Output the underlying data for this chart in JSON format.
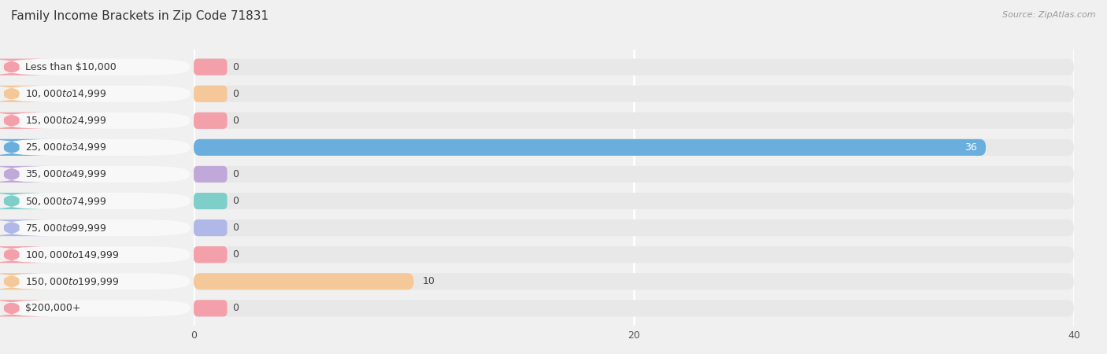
{
  "title": "Family Income Brackets in Zip Code 71831",
  "source": "Source: ZipAtlas.com",
  "categories": [
    "Less than $10,000",
    "$10,000 to $14,999",
    "$15,000 to $24,999",
    "$25,000 to $34,999",
    "$35,000 to $49,999",
    "$50,000 to $74,999",
    "$75,000 to $99,999",
    "$100,000 to $149,999",
    "$150,000 to $199,999",
    "$200,000+"
  ],
  "values": [
    0,
    0,
    0,
    36,
    0,
    0,
    0,
    0,
    10,
    0
  ],
  "bar_colors": [
    "#f4a0aa",
    "#f5c89a",
    "#f4a0aa",
    "#6aaede",
    "#c0a8d8",
    "#7ecfca",
    "#b0b8e8",
    "#f4a0aa",
    "#f5c89a",
    "#f4a0aa"
  ],
  "xlim_max": 40,
  "xticks": [
    0,
    20,
    40
  ],
  "background_color": "#f0f0f0",
  "row_bg_color": "#e8e8e8",
  "label_bg_color": "#ffffff",
  "grid_color": "#ffffff",
  "title_fontsize": 11,
  "label_fontsize": 9,
  "value_fontsize": 9,
  "source_fontsize": 8
}
